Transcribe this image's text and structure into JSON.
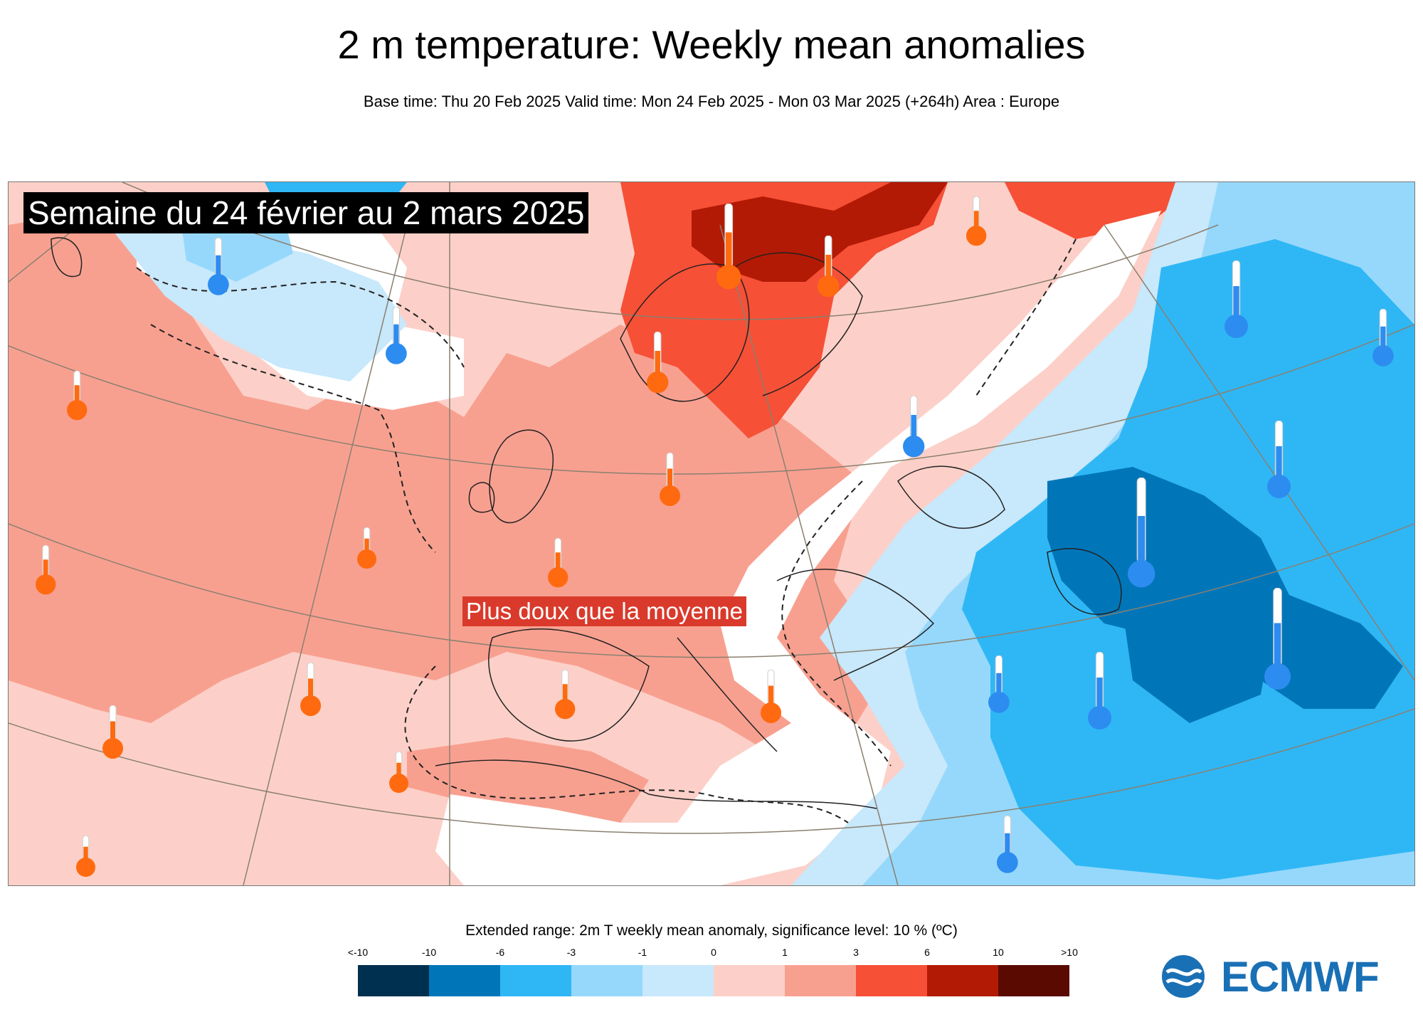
{
  "header": {
    "title": "2 m temperature: Weekly mean anomalies",
    "subtitle": "Base time: Thu 20 Feb 2025 Valid time: Mon 24 Feb 2025 - Mon 03 Mar 2025 (+264h) Area : Europe"
  },
  "map": {
    "banner": "Semaine du 24 février au 2 mars 2025",
    "annotation": "Plus doux que la moyenne",
    "colors": {
      "warm_light": "#fcd0c8",
      "warm_mid": "#f8a090",
      "warm_strong": "#f65036",
      "warm_very": "#b31a05",
      "cool_light": "#c8e8fb",
      "cool_mid": "#96d8fb",
      "cool_strong": "#2fb7f5",
      "cool_very": "#0076b9",
      "neutral": "#ffffff"
    },
    "thermometer_icons": [
      {
        "kind": "warm",
        "name": "thermometer-warm-icon"
      },
      {
        "kind": "cool",
        "name": "thermometer-cold-icon"
      }
    ]
  },
  "legend": {
    "title": "Extended range: 2m T weekly mean anomaly, significance level: 10 % (ºC)",
    "ticks": [
      "<-10",
      "-10",
      "-6",
      "-3",
      "-1",
      "0",
      "1",
      "3",
      "6",
      "10",
      ">10"
    ],
    "colors": [
      "#00304f",
      "#0076b9",
      "#2fb7f5",
      "#96d8fb",
      "#c8e8fb",
      "#fcd0c8",
      "#f8a090",
      "#f65036",
      "#b31a05",
      "#5a0a00"
    ]
  },
  "logo": {
    "text": "ECMWF",
    "color": "#1a70b5"
  }
}
